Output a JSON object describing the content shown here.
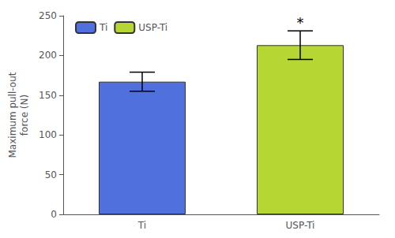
{
  "chart_data": {
    "type": "bar",
    "categories": [
      "Ti",
      "USP-Ti"
    ],
    "series": [
      {
        "name": "Ti",
        "values": [
          167,
          null
        ],
        "errors": [
          12,
          null
        ]
      },
      {
        "name": "USP-Ti",
        "values": [
          null,
          213
        ],
        "errors": [
          null,
          18
        ]
      }
    ],
    "ylabel": "Maximum pull-out\nforce (N)",
    "ylim": [
      0,
      250
    ],
    "yticks": [
      0,
      50,
      100,
      150,
      200,
      250
    ],
    "grid": false,
    "legend": "upper left",
    "annotations": [
      {
        "text": "*",
        "category": "USP-Ti"
      }
    ]
  }
}
